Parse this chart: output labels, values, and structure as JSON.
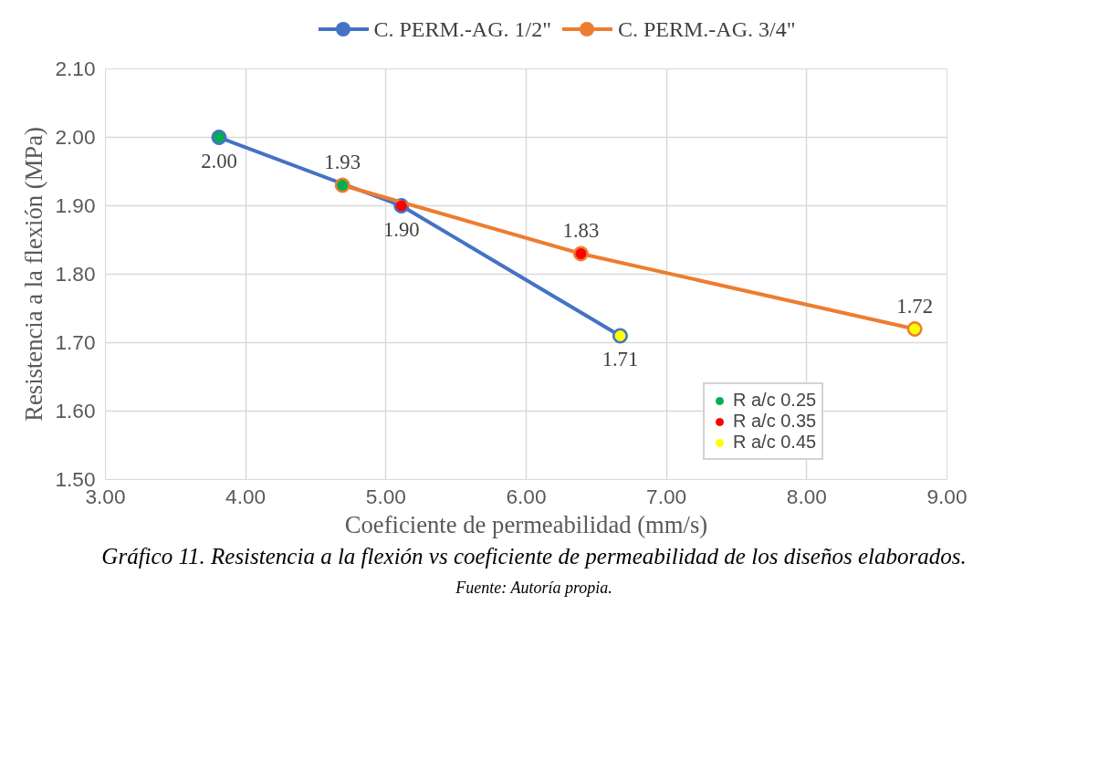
{
  "chart_data": {
    "type": "line",
    "title": "Gráfico 11. Resistencia a la flexión vs coeficiente de permeabilidad de los diseños elaborados.",
    "xlabel": "Coeficiente de permeabilidad (mm/s)",
    "ylabel": "Resistencia a la flexión (MPa)",
    "annotations": [
      "Fuente: Autoría propia."
    ],
    "xlim": [
      3,
      9
    ],
    "xticks": [
      {
        "value": 3,
        "label": "3.00"
      },
      {
        "value": 4,
        "label": "4.00"
      },
      {
        "value": 5,
        "label": "5.00"
      },
      {
        "value": 6,
        "label": "6.00"
      },
      {
        "value": 7,
        "label": "7.00"
      },
      {
        "value": 8,
        "label": "8.00"
      },
      {
        "value": 9,
        "label": "9.00"
      }
    ],
    "ylim": [
      1.5,
      2.1
    ],
    "yticks": [
      {
        "value": 1.5,
        "label": "1.50"
      },
      {
        "value": 1.6,
        "label": "1.60"
      },
      {
        "value": 1.7,
        "label": "1.70"
      },
      {
        "value": 1.8,
        "label": "1.80"
      },
      {
        "value": 1.9,
        "label": "1.90"
      },
      {
        "value": 2.0,
        "label": "2.00"
      },
      {
        "value": 2.1,
        "label": "2.10"
      }
    ],
    "grid": true,
    "legend": "top",
    "marker": "circle",
    "series": [
      {
        "name": "C. PERM.-AG. 1/2\"",
        "color": "#4472c4",
        "x": [
          3.81,
          5.11,
          6.67
        ],
        "values": [
          2.0,
          1.9,
          1.71
        ],
        "value_labels": [
          "2.00",
          "1.90",
          "1.71"
        ]
      },
      {
        "name": "C. PERM.-AG. 3/4\"",
        "color": "#ed7d31",
        "x": [
          4.69,
          6.39,
          8.77
        ],
        "values": [
          1.93,
          1.83,
          1.72
        ],
        "value_labels": [
          "1.93",
          "1.83",
          "1.72"
        ]
      },
      {
        "name": "R a/c 0.25",
        "type": "scatter",
        "color": "#00b050",
        "x": [
          3.81,
          4.69
        ],
        "values": [
          2.0,
          1.93
        ]
      },
      {
        "name": "R a/c 0.35",
        "type": "scatter",
        "color": "#ff0000",
        "x": [
          5.11,
          6.39
        ],
        "values": [
          1.9,
          1.83
        ]
      },
      {
        "name": "R a/c 0.45",
        "type": "scatter",
        "color": "#ffff00",
        "x": [
          6.67,
          8.77
        ],
        "values": [
          1.71,
          1.72
        ]
      }
    ]
  }
}
